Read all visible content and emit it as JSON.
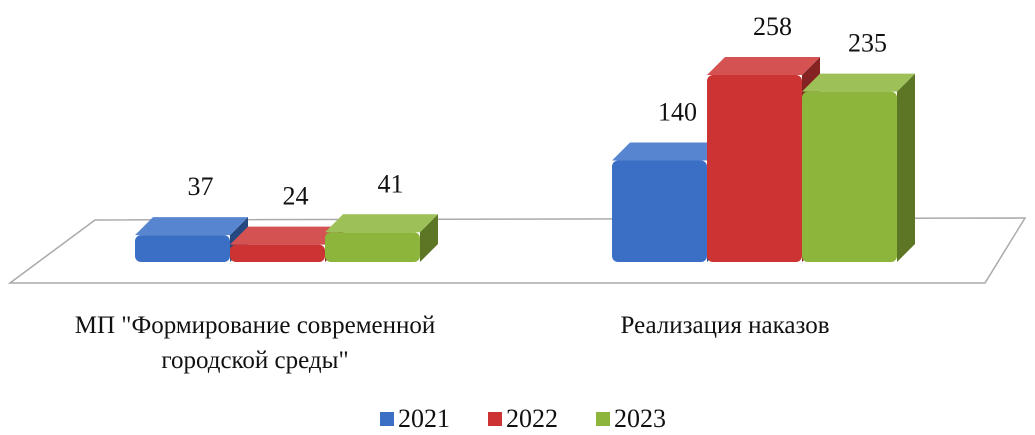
{
  "chart_data": {
    "type": "bar3d",
    "categories": [
      "МП \"Формирование современной городской среды\"",
      "Реализация наказов"
    ],
    "series": [
      {
        "name": "2021",
        "color": "#3b6fc6",
        "values": [
          37,
          140
        ]
      },
      {
        "name": "2022",
        "color": "#cc3434",
        "values": [
          24,
          258
        ]
      },
      {
        "name": "2023",
        "color": "#8db53b",
        "values": [
          41,
          235
        ]
      }
    ],
    "legend": "bottom"
  }
}
